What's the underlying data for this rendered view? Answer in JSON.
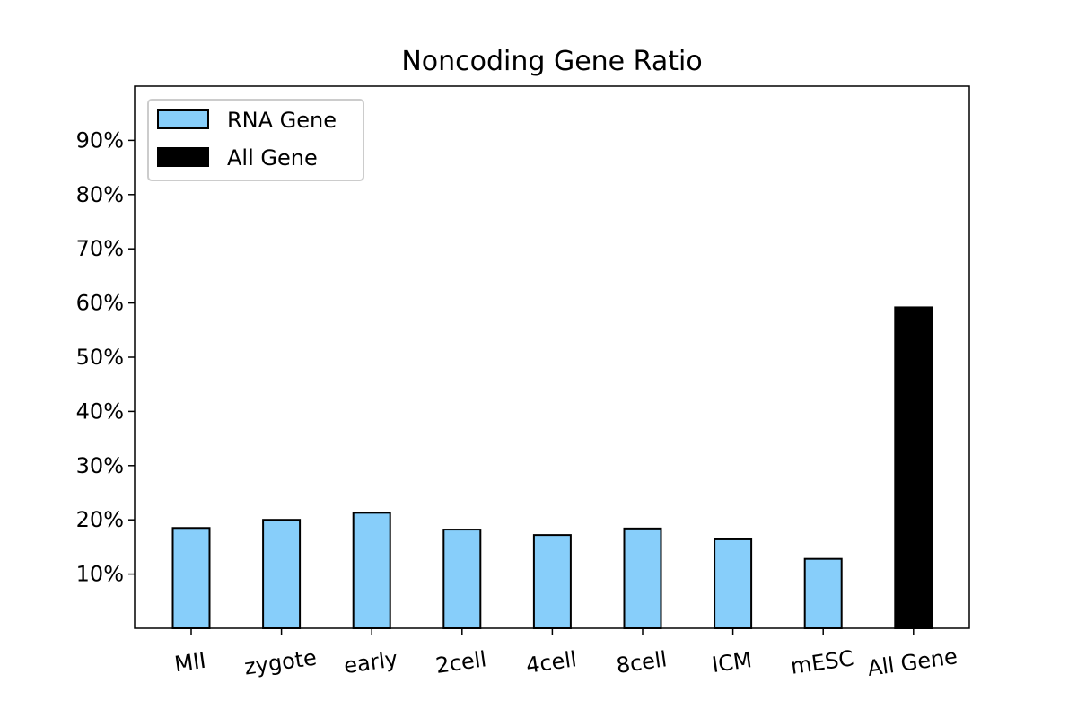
{
  "chart_data": {
    "type": "bar",
    "title": "Noncoding Gene Ratio",
    "xlabel": "",
    "ylabel": "",
    "categories": [
      "MII",
      "zygote",
      "early",
      "2cell",
      "4cell",
      "8cell",
      "ICM",
      "mESC",
      "All Gene"
    ],
    "series": [
      {
        "name": "RNA Gene",
        "color": "#87CEFA",
        "values": [
          18.5,
          20.0,
          21.3,
          18.2,
          17.2,
          18.4,
          16.4,
          12.8,
          null
        ]
      },
      {
        "name": "All Gene",
        "color": "#000000",
        "values": [
          null,
          null,
          null,
          null,
          null,
          null,
          null,
          null,
          59.2
        ]
      }
    ],
    "ylim": [
      0,
      100
    ],
    "yticks": [
      10,
      20,
      30,
      40,
      50,
      60,
      70,
      80,
      90
    ],
    "ytick_labels": [
      "10%",
      "20%",
      "30%",
      "40%",
      "50%",
      "60%",
      "70%",
      "80%",
      "90%"
    ],
    "x_tick_rotation_deg": -8,
    "grid": false,
    "legend_position": "top-left"
  }
}
